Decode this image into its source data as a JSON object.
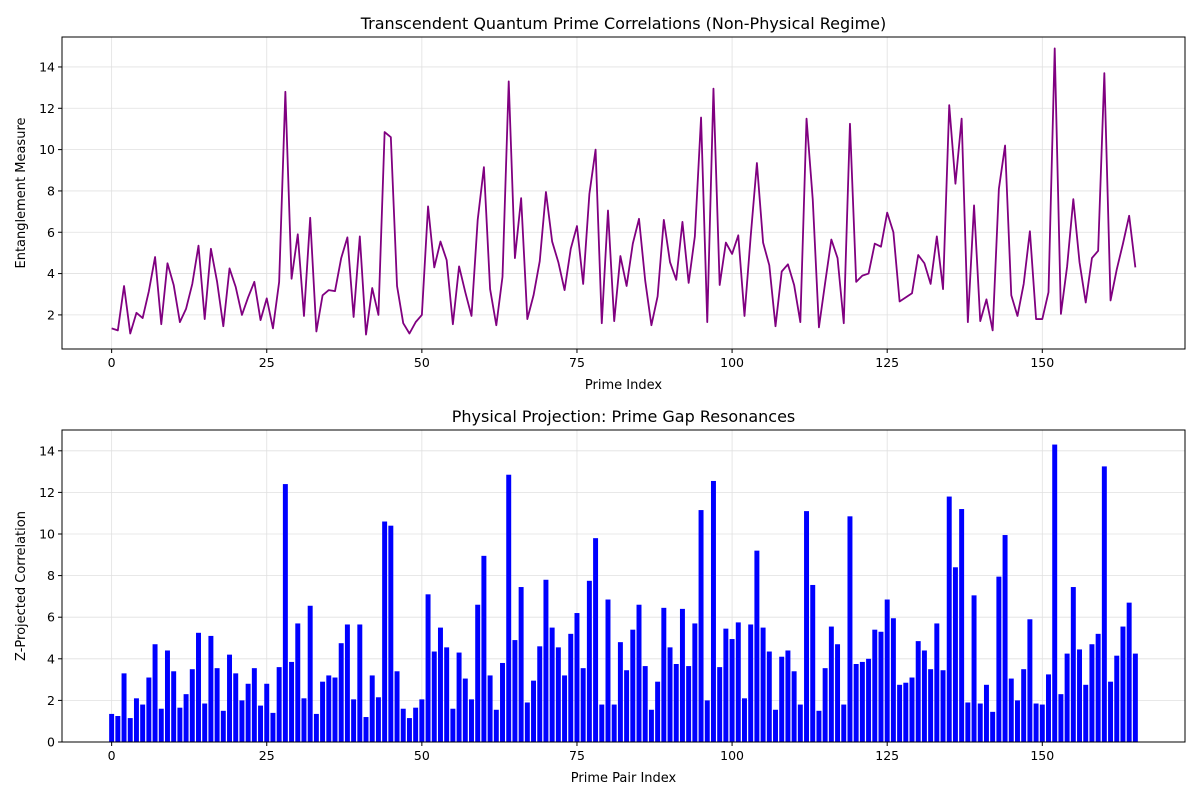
{
  "chart_data": [
    {
      "type": "line",
      "title": "Transcendent Quantum Prime Correlations (Non-Physical Regime)",
      "xlabel": "Prime Index",
      "ylabel": "Entanglement Measure",
      "xlim": [
        -8,
        173
      ],
      "ylim": [
        0.35,
        15.45
      ],
      "xticks": [
        0,
        25,
        50,
        75,
        100,
        125,
        150
      ],
      "yticks": [
        2,
        4,
        6,
        8,
        10,
        12,
        14
      ],
      "grid": true,
      "color": "#800080",
      "x_start": 0,
      "values": [
        1.35,
        1.25,
        3.4,
        1.1,
        2.1,
        1.85,
        3.15,
        4.8,
        1.55,
        4.5,
        3.45,
        1.65,
        2.3,
        3.5,
        5.35,
        1.8,
        5.2,
        3.6,
        1.45,
        4.25,
        3.35,
        2.0,
        2.85,
        3.6,
        1.75,
        2.8,
        1.35,
        3.6,
        12.8,
        3.75,
        5.9,
        1.95,
        6.7,
        1.2,
        2.95,
        3.2,
        3.15,
        4.75,
        5.75,
        1.9,
        5.8,
        1.05,
        3.3,
        2.0,
        10.85,
        10.6,
        3.4,
        1.6,
        1.1,
        1.65,
        2.0,
        7.25,
        4.3,
        5.55,
        4.65,
        1.55,
        4.35,
        3.1,
        1.95,
        6.6,
        9.15,
        3.25,
        1.5,
        3.85,
        13.3,
        4.75,
        7.65,
        1.8,
        2.95,
        4.6,
        7.95,
        5.55,
        4.55,
        3.2,
        5.2,
        6.3,
        3.5,
        7.85,
        10.0,
        1.6,
        7.05,
        1.7,
        4.85,
        3.4,
        5.45,
        6.65,
        3.65,
        1.5,
        2.9,
        6.6,
        4.55,
        3.7,
        6.5,
        3.55,
        5.8,
        11.55,
        1.65,
        12.95,
        3.45,
        5.5,
        4.95,
        5.85,
        1.95,
        5.8,
        9.35,
        5.5,
        4.4,
        1.45,
        4.1,
        4.45,
        3.45,
        1.65,
        11.5,
        7.6,
        1.4,
        3.55,
        5.65,
        4.75,
        1.6,
        11.25,
        3.6,
        3.9,
        4.0,
        5.45,
        5.3,
        6.95,
        6.0,
        2.65,
        2.85,
        3.05,
        4.9,
        4.5,
        3.5,
        5.8,
        3.25,
        12.15,
        8.35,
        11.5,
        1.65,
        7.3,
        1.7,
        2.75,
        1.25,
        8.1,
        10.2,
        2.95,
        1.95,
        3.5,
        6.05,
        1.8,
        1.8,
        3.1,
        14.9,
        2.05,
        4.35,
        7.6,
        4.55,
        2.6,
        4.75,
        5.1,
        13.7,
        2.7,
        4.2,
        5.45,
        6.8,
        4.3
      ]
    },
    {
      "type": "bar",
      "title": "Physical Projection: Prime Gap Resonances",
      "xlabel": "Prime Pair Index",
      "ylabel": "Z-Projected Correlation",
      "xlim": [
        -8,
        173
      ],
      "ylim": [
        0,
        15
      ],
      "xticks": [
        0,
        25,
        50,
        75,
        100,
        125,
        150
      ],
      "yticks": [
        0,
        2,
        4,
        6,
        8,
        10,
        12,
        14
      ],
      "grid": true,
      "color": "#0000ff",
      "x_start": 0,
      "values": [
        1.35,
        1.25,
        3.3,
        1.15,
        2.1,
        1.8,
        3.1,
        4.7,
        1.6,
        4.4,
        3.4,
        1.65,
        2.3,
        3.5,
        5.25,
        1.85,
        5.1,
        3.55,
        1.5,
        4.2,
        3.3,
        2.0,
        2.8,
        3.55,
        1.75,
        2.8,
        1.4,
        3.6,
        12.4,
        3.85,
        5.7,
        2.1,
        6.55,
        1.35,
        2.9,
        3.2,
        3.1,
        4.75,
        5.65,
        2.05,
        5.65,
        1.2,
        3.2,
        2.15,
        10.6,
        10.4,
        3.4,
        1.6,
        1.15,
        1.65,
        2.05,
        7.1,
        4.35,
        5.5,
        4.55,
        1.6,
        4.3,
        3.05,
        2.05,
        6.6,
        8.95,
        3.2,
        1.55,
        3.8,
        12.85,
        4.9,
        7.45,
        1.9,
        2.95,
        4.6,
        7.8,
        5.5,
        4.55,
        3.2,
        5.2,
        6.2,
        3.55,
        7.75,
        9.8,
        1.8,
        6.85,
        1.8,
        4.8,
        3.45,
        5.4,
        6.6,
        3.65,
        1.55,
        2.9,
        6.45,
        4.55,
        3.75,
        6.4,
        3.65,
        5.7,
        11.15,
        2.0,
        12.55,
        3.6,
        5.45,
        4.95,
        5.75,
        2.1,
        5.65,
        9.2,
        5.5,
        4.35,
        1.55,
        4.1,
        4.4,
        3.4,
        1.8,
        11.1,
        7.55,
        1.5,
        3.55,
        5.55,
        4.7,
        1.8,
        10.85,
        3.75,
        3.85,
        4.0,
        5.4,
        5.3,
        6.85,
        5.95,
        2.75,
        2.85,
        3.1,
        4.85,
        4.4,
        3.5,
        5.7,
        3.45,
        11.8,
        8.4,
        11.2,
        1.9,
        7.05,
        1.85,
        2.75,
        1.45,
        7.95,
        9.95,
        3.05,
        2.0,
        3.5,
        5.9,
        1.85,
        1.8,
        3.25,
        14.3,
        2.3,
        4.25,
        7.45,
        4.45,
        2.75,
        4.7,
        5.2,
        13.25,
        2.9,
        4.15,
        5.55,
        6.7,
        4.25
      ]
    }
  ]
}
